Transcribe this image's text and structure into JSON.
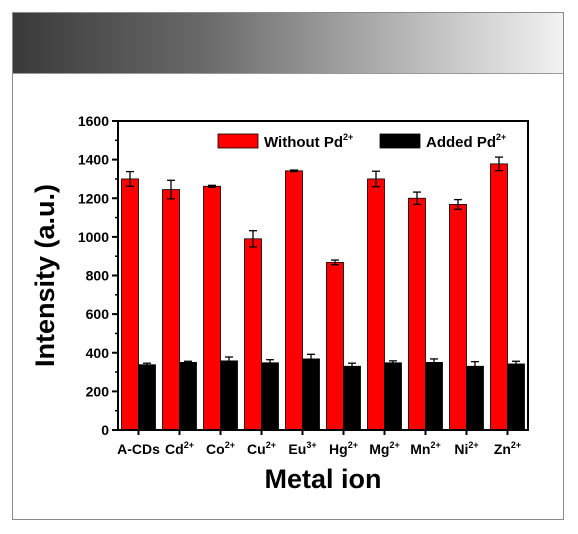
{
  "chart_data": {
    "type": "bar",
    "categories": [
      {
        "base": "A-CDs",
        "sup": ""
      },
      {
        "base": "Cd",
        "sup": "2+"
      },
      {
        "base": "Co",
        "sup": "2+"
      },
      {
        "base": "Cu",
        "sup": "2+"
      },
      {
        "base": "Eu",
        "sup": "3+"
      },
      {
        "base": "Hg",
        "sup": "2+"
      },
      {
        "base": "Mg",
        "sup": "2+"
      },
      {
        "base": "Mn",
        "sup": "2+"
      },
      {
        "base": "Ni",
        "sup": "2+"
      },
      {
        "base": "Zn",
        "sup": "2+"
      }
    ],
    "series": [
      {
        "name": "Without Pd",
        "name_sup": "2+",
        "color": "#ff0000",
        "values": [
          1300,
          1245,
          1262,
          990,
          1342,
          868,
          1300,
          1200,
          1168,
          1378
        ],
        "errors": [
          38,
          48,
          5,
          42,
          4,
          12,
          40,
          32,
          25,
          35
        ]
      },
      {
        "name": "Added Pd",
        "name_sup": "2+",
        "color": "#000000",
        "values": [
          338,
          350,
          358,
          348,
          368,
          330,
          348,
          350,
          330,
          342
        ],
        "errors": [
          8,
          6,
          20,
          16,
          24,
          16,
          10,
          18,
          24,
          14
        ]
      }
    ],
    "xlabel": "Metal ion",
    "ylabel": "Intensity (a.u.)",
    "ylim": [
      0,
      1600
    ],
    "yticks": [
      0,
      200,
      400,
      600,
      800,
      1000,
      1200,
      1400,
      1600
    ],
    "grid": false,
    "legend_position": "top-right"
  }
}
